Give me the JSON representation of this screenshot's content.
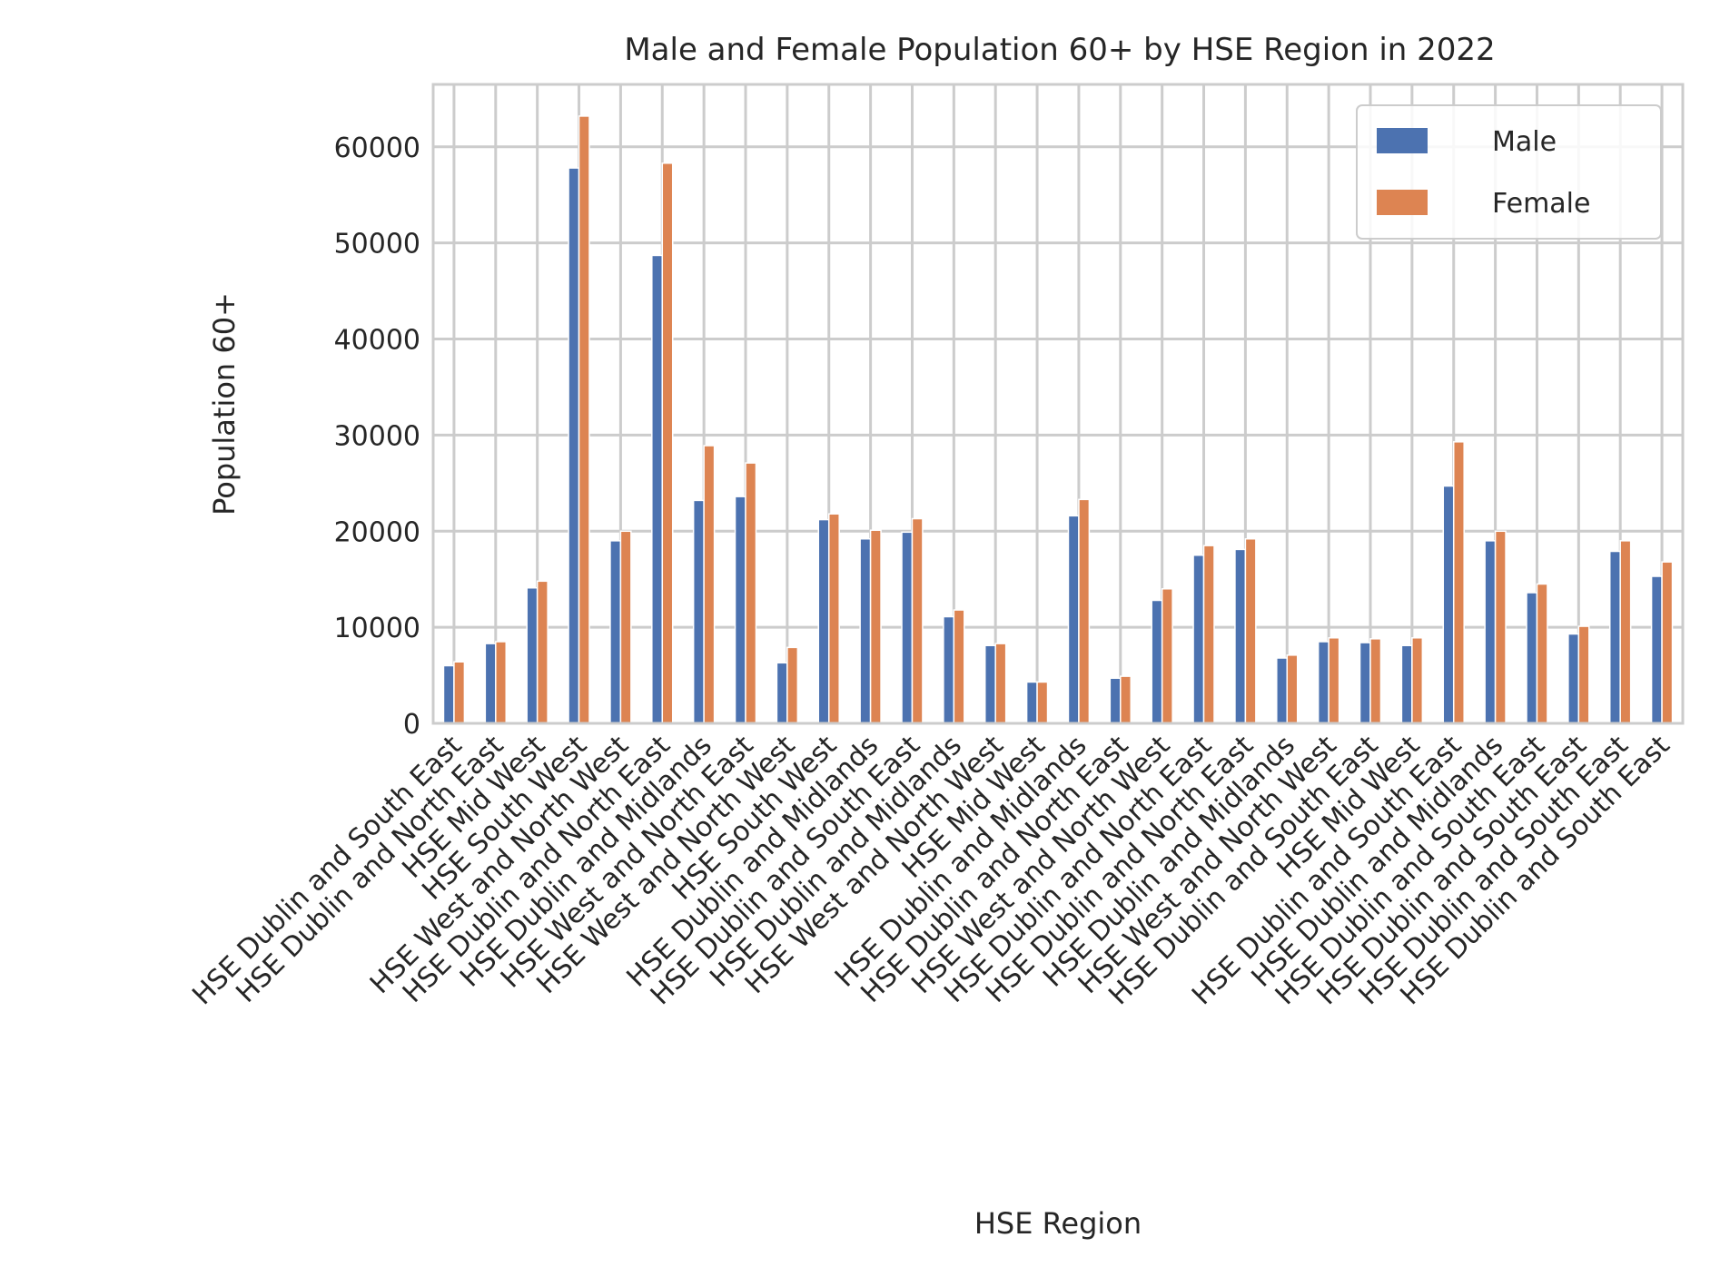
{
  "chart_data": {
    "type": "bar",
    "title": "Male and Female Population 60+ by HSE Region in 2022",
    "xlabel": "HSE Region",
    "ylabel": "Population 60+",
    "ylim": [
      0,
      66500
    ],
    "yticks": [
      0,
      10000,
      20000,
      30000,
      40000,
      50000,
      60000
    ],
    "grid": true,
    "legend_position": "top-right",
    "categories": [
      "HSE Dublin and South East",
      "HSE Dublin and North East",
      "HSE Mid West",
      "HSE South West",
      "HSE West and North West",
      "HSE Dublin and North East",
      "HSE Dublin and Midlands",
      "HSE West and North East",
      "HSE West and North West",
      "HSE South West",
      "HSE Dublin and Midlands",
      "HSE Dublin and South East",
      "HSE Dublin and Midlands",
      "HSE West and North West",
      "HSE Mid West",
      "HSE Dublin and Midlands",
      "HSE Dublin and North East",
      "HSE West and North West",
      "HSE Dublin and North East",
      "HSE Dublin and North East",
      "HSE Dublin and Midlands",
      "HSE West and North West",
      "HSE Dublin and South East",
      "HSE Mid West",
      "HSE Dublin and South East",
      "HSE Dublin and Midlands",
      "HSE Dublin and South East",
      "HSE Dublin and South East",
      "HSE Dublin and South East",
      "HSE Dublin and South East"
    ],
    "series": [
      {
        "name": "Male",
        "color": "#4c72b0",
        "values": [
          6000,
          8300,
          14100,
          57800,
          19000,
          48700,
          23200,
          23600,
          6300,
          21200,
          19200,
          19900,
          11100,
          8100,
          4300,
          21600,
          4700,
          12800,
          17500,
          18100,
          6800,
          8500,
          8400,
          8100,
          24700,
          19000,
          13600,
          9300,
          17900,
          15300
        ]
      },
      {
        "name": "Female",
        "color": "#dd8452",
        "values": [
          6400,
          8500,
          14800,
          63200,
          20000,
          58300,
          28900,
          27100,
          7900,
          21800,
          20100,
          21300,
          11800,
          8300,
          4300,
          23300,
          4900,
          14000,
          18500,
          19200,
          7100,
          8900,
          8800,
          8900,
          29300,
          20000,
          14500,
          10100,
          19000,
          16800
        ]
      }
    ]
  }
}
